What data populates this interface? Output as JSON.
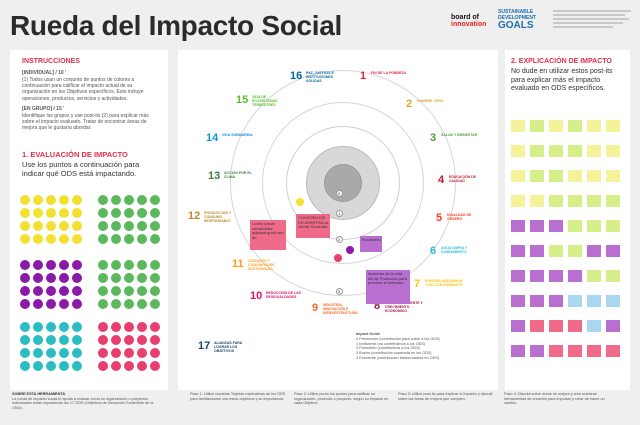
{
  "header": {
    "title": "Rueda del Impacto Social",
    "logo_board": "board of",
    "logo_innovation": "innovation",
    "sdg_logo_line1": "SUSTAINABLE",
    "sdg_logo_line2": "DEVELOPMENT",
    "sdg_logo_goals": "GOALS"
  },
  "instructions": {
    "title": "INSTRUCCIONES",
    "individual_label": "[INDIVIDUAL] / 10 '",
    "individual_text": "(1) Todos usan un conjunto de puntos de colores a continuación para calificar el impacto actual de su organización en los Objetivos específicos. Esto incluye operaciones, productos, servicios y actividades.",
    "group_label": "[EN GRUPO] / 15 '",
    "group_text": "Identifique los grupos y use post-its (2) para explicar más sobre el impacto evaluado. Tratar de encontrar áreas de mejora que le gustaría abordar."
  },
  "evaluation": {
    "title": "1. EVALUACIÓN DE IMPACTO",
    "text": "Use los puntos a continuación para indicar qué ODS está impactando."
  },
  "explanation": {
    "title": "2. EXPLICACIÓN DE IMPACTO",
    "text": "No dude en utilizar estos post-its para explicar más el impacto evaluado en ODS específicos."
  },
  "wheel": {
    "center_labels": [
      "0",
      "1",
      "2",
      "3"
    ],
    "sdgs": [
      {
        "num": "1",
        "label": "FIN DE LA POBREZA",
        "color": "#e5243b"
      },
      {
        "num": "2",
        "label": "HAMBRE CERO",
        "color": "#dda63a"
      },
      {
        "num": "3",
        "label": "SALUD Y BIENESTAR",
        "color": "#4c9f38"
      },
      {
        "num": "4",
        "label": "EDUCACIÓN DE CALIDAD",
        "color": "#c5192d"
      },
      {
        "num": "5",
        "label": "IGUALDAD DE GÉNERO",
        "color": "#ff3a21"
      },
      {
        "num": "6",
        "label": "AGUA LIMPIA Y SANEAMIENTO",
        "color": "#26bde2"
      },
      {
        "num": "7",
        "label": "ENERGÍA ASEQUIBLE Y NO CONTAMINANTE",
        "color": "#fcc30b"
      },
      {
        "num": "8",
        "label": "TRABAJO DECENTE Y CRECIMIENTO ECONÓMICO",
        "color": "#a21942"
      },
      {
        "num": "9",
        "label": "INDUSTRIA, INNOVACIÓN E INFRAESTRUCTURA",
        "color": "#fd6925"
      },
      {
        "num": "10",
        "label": "REDUCCIÓN DE LAS DESIGUALDADES",
        "color": "#dd1367"
      },
      {
        "num": "11",
        "label": "CIUDADES Y COMUNIDADES SOSTENIBLES",
        "color": "#fd9d24"
      },
      {
        "num": "12",
        "label": "PRODUCCIÓN Y CONSUMO RESPONSABLE",
        "color": "#bf8b2e"
      },
      {
        "num": "13",
        "label": "ACCIÓN POR EL CLIMA",
        "color": "#3f7e44"
      },
      {
        "num": "14",
        "label": "VIDA SUBMARINA",
        "color": "#0a97d9"
      },
      {
        "num": "15",
        "label": "VIDA DE ECOSISTEMAS TERRESTRES",
        "color": "#56c02b"
      },
      {
        "num": "16",
        "label": "PAZ, JUSTICIA E INSTITUCIONES SÓLIDAS",
        "color": "#00689d"
      },
      {
        "num": "17",
        "label": "ALIANZAS PARA LOGRAR LOS OBJETIVOS",
        "color": "#19486a"
      }
    ],
    "notes": [
      {
        "text": "Lorem ipsum consectetur adipiscing elit sed do",
        "color": "#f06b8a"
      },
      {
        "text": "CONSORCIOS EN ASERTIVA al ofertar Sociedad",
        "color": "#f06b8a"
      },
      {
        "text": "Ecodiseño",
        "color": "#b96fd0"
      },
      {
        "text": "Aumento de la vida útil de Productos para prevenir el deterioro",
        "color": "#b96fd0"
      }
    ]
  },
  "impact_legend": {
    "title": "Impact Guide",
    "items": [
      "0 Prevención (contribución para cubrir a los ODS)",
      "1 Ineficiente (no contribuimos a los ODS)",
      "2 Prometido (contribuimos a los ODS)",
      "3 Bueno (contribución superada en los ODS)",
      "4 Excelente (contribución trasformadora en ODS)"
    ]
  },
  "footer": {
    "about_title": "SOBRE ESTA HERRAMIENTA",
    "about_text": "La rueda de impacto social le ayuda a evaluar cómo su organización o proyectos individuales están impactando los 17 ODS (Objetivos de Desarrollo Sostenible de la ONU).",
    "step1": "Paso 1: Utilice nuestras Tarjetas explicativas de los ODS para familiarizarse con estos objetivos y su importancia.",
    "step2": "Paso 2: Utilice punto los puntos para calificar su organización, producto o proyecto, según su impacto en cada Objetivo.",
    "step3": "Paso 3: Utilice post-its para explicar el impacto y discutir sobre las áreas de mejora que cumplen.",
    "step4": "Paso 4: Discuta sobre áreas de mejora y cree nuestras herramientas de creación para impulsar y crear de hacer un cambio."
  },
  "colors": {
    "accent": "#e0304b",
    "yellow": "#f2e130",
    "green": "#5cb85c",
    "purple": "#8b1aa8",
    "teal": "#2bbdc4",
    "pink": "#e83f6f"
  }
}
